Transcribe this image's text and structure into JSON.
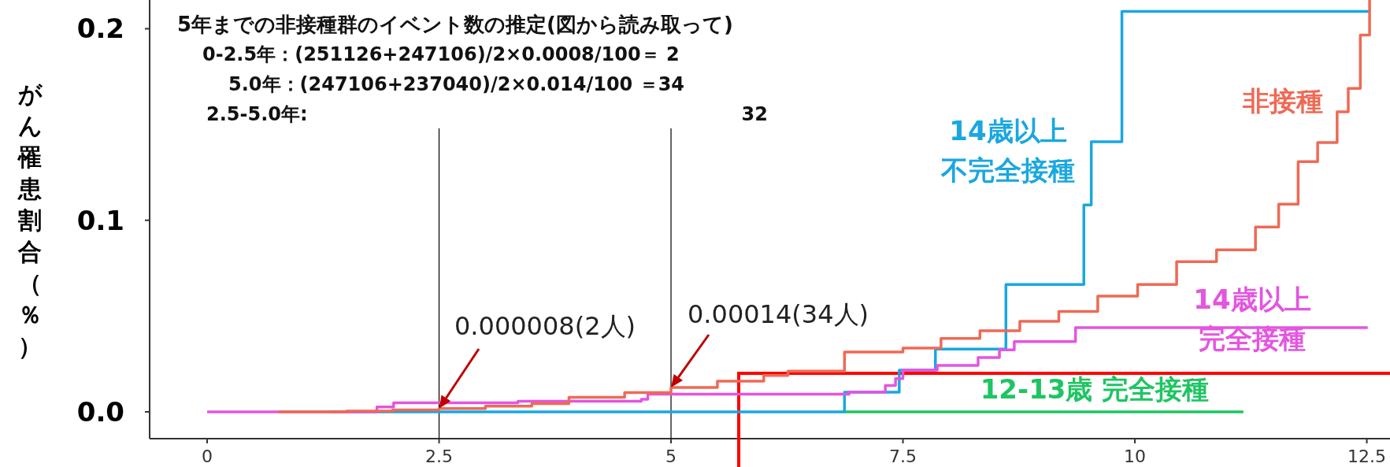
{
  "chart_data": {
    "type": "step",
    "title": "5年までの非接種群のイベント数の推定(図から読み取って)",
    "ylabel": "がん罹患割合（％）",
    "xlim": [
      -0.62,
      12.75
    ],
    "ylim": [
      -0.014,
      0.215
    ],
    "xticks": [
      0,
      2.5,
      5,
      7.5,
      10,
      12.5
    ],
    "yticks": [
      {
        "value": 0,
        "label": "0.0"
      },
      {
        "value": 0.1,
        "label": "0.1"
      },
      {
        "value": 0.2,
        "label": "0.2"
      }
    ],
    "grid": false,
    "line_style": "solid",
    "series": [
      {
        "name": "非接種",
        "color": "#ee6a55",
        "x": [
          0.77,
          1.5,
          2.0,
          2.5,
          3.0,
          3.5,
          3.9,
          4.5,
          5.0,
          5.5,
          6.0,
          6.26,
          6.87,
          7.5,
          7.91,
          8.33,
          8.76,
          9.18,
          9.6,
          10.03,
          10.45,
          10.88,
          11.3,
          11.55,
          11.76,
          11.97,
          12.18,
          12.3,
          12.43,
          12.53
        ],
        "values": [
          0,
          0.0004,
          0.001,
          0.0017,
          0.003,
          0.0043,
          0.0076,
          0.01,
          0.0127,
          0.016,
          0.019,
          0.0213,
          0.0312,
          0.0333,
          0.0383,
          0.0423,
          0.0473,
          0.0524,
          0.0604,
          0.0665,
          0.0784,
          0.0846,
          0.0965,
          0.1084,
          0.1306,
          0.1406,
          0.1566,
          0.1688,
          0.1967,
          0.215
        ]
      },
      {
        "name": "14歳以上不完全接種",
        "color": "#1aa7e0",
        "x": [
          1.32,
          6.87,
          7.46,
          7.85,
          8.61,
          9.45,
          9.53,
          9.86,
          12.54
        ],
        "values": [
          0,
          0.0103,
          0.0218,
          0.0328,
          0.0665,
          0.108,
          0.141,
          0.209,
          0.209
        ]
      },
      {
        "name": "14歳以上完全接種",
        "color": "#e455e0",
        "x": [
          0,
          1.83,
          2.01,
          3.35,
          4.68,
          4.75,
          6.92,
          7.31,
          7.42,
          7.5,
          7.87,
          8.31,
          8.54,
          8.7,
          9.36,
          12.51
        ],
        "values": [
          0,
          0.0025,
          0.0047,
          0.0055,
          0.0066,
          0.0092,
          0.0103,
          0.0137,
          0.0173,
          0.0218,
          0.0242,
          0.0283,
          0.0324,
          0.0367,
          0.044,
          0.044
        ]
      },
      {
        "name": "12-13歳 完全接種",
        "color": "#1ec562",
        "x": [
          6.87,
          11.17
        ],
        "values": [
          0,
          0
        ]
      }
    ],
    "ref_lines": [
      {
        "axis": "x",
        "value": 2.5,
        "color": "#000000"
      },
      {
        "axis": "x",
        "value": 5,
        "color": "#000000"
      }
    ],
    "annotations": [
      "0-2.5年：(251126+247106)/2×0.0008/100＝ 2",
      "5.0年：(247106+237040)/2×0.014/100 ＝34",
      "2.5-5.0年:",
      "32",
      {
        "text": "0.000008(2人)",
        "x": 2.5,
        "y": 0.0017
      },
      {
        "text": "0.00014(34人)",
        "x": 5,
        "y": 0.0127
      }
    ]
  }
}
